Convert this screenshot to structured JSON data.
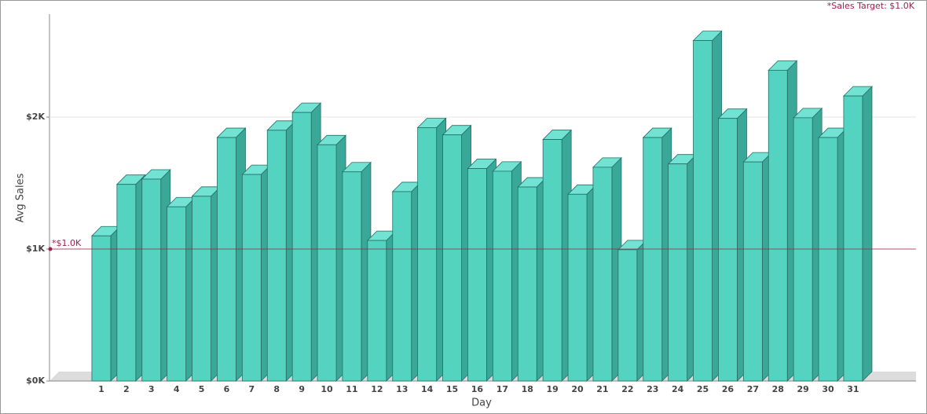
{
  "chart_data": {
    "type": "bar3d",
    "x_label": "Day",
    "y_label": "Avg Sales",
    "categories": [
      "1",
      "2",
      "3",
      "4",
      "5",
      "6",
      "7",
      "8",
      "9",
      "10",
      "11",
      "12",
      "13",
      "14",
      "15",
      "16",
      "17",
      "18",
      "19",
      "20",
      "21",
      "22",
      "23",
      "24",
      "25",
      "26",
      "27",
      "28",
      "29",
      "30",
      "31"
    ],
    "values": [
      1100,
      1490,
      1530,
      1320,
      1400,
      1845,
      1565,
      1900,
      2035,
      1790,
      1585,
      1065,
      1435,
      1920,
      1865,
      1610,
      1590,
      1470,
      1830,
      1415,
      1620,
      995,
      1845,
      1645,
      2580,
      1990,
      1660,
      2355,
      1995,
      1845,
      2160
    ],
    "color": "#55d3c1",
    "ylim": [
      0,
      2780
    ],
    "yticks": [
      {
        "value": 0,
        "label": "$0K"
      },
      {
        "value": 1000,
        "label": "$1K"
      },
      {
        "value": 2000,
        "label": "$2K"
      }
    ],
    "grid": true,
    "target": {
      "value": 1000,
      "label": "*$1.0K",
      "legend": "*Sales Target: $1.0K",
      "color": "#a0204a"
    }
  }
}
